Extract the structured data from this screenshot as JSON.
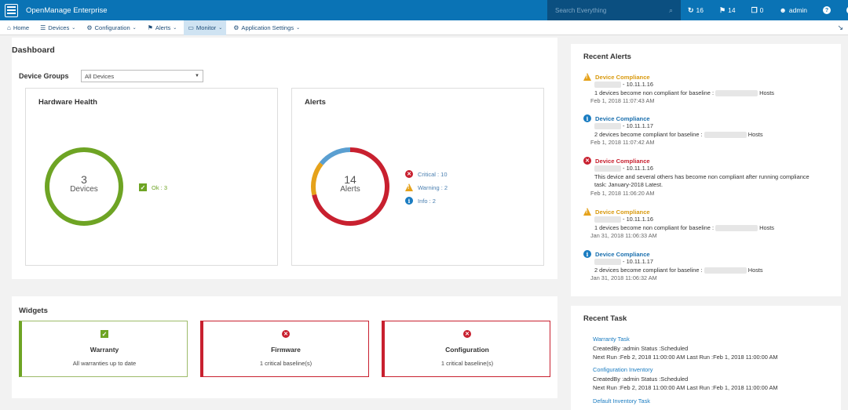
{
  "app": {
    "title": "OpenManage Enterprise"
  },
  "search": {
    "placeholder": "Search Everything"
  },
  "topbar": {
    "jobs": "16",
    "alerts": "14",
    "reports": "0",
    "user": "admin",
    "help": "?",
    "info": "i"
  },
  "nav": [
    {
      "label": "Home",
      "icon": "home-icon"
    },
    {
      "label": "Devices",
      "icon": "devices-icon"
    },
    {
      "label": "Configuration",
      "icon": "configuration-icon"
    },
    {
      "label": "Alerts",
      "icon": "flag-icon"
    },
    {
      "label": "Monitor",
      "icon": "monitor-icon"
    },
    {
      "label": "Application Settings",
      "icon": "gear-icon"
    }
  ],
  "dashboard": {
    "title": "Dashboard",
    "device_groups_label": "Device Groups",
    "device_groups_selected": "All Devices",
    "hardware_health": {
      "title": "Hardware Health",
      "count": "3",
      "count_label": "Devices",
      "legend": [
        {
          "label": "Ok : 3",
          "color": "#6ea424"
        }
      ]
    },
    "alerts": {
      "title": "Alerts",
      "count": "14",
      "count_label": "Alerts",
      "legend": [
        {
          "label": "Critical : 10",
          "color": "#c8202f"
        },
        {
          "label": "Warning : 2",
          "color": "#e5a21b"
        },
        {
          "label": "Info : 2",
          "color": "#5a9fd1"
        }
      ]
    }
  },
  "chart_data": [
    {
      "type": "pie",
      "title": "Hardware Health",
      "categories": [
        "Ok"
      ],
      "values": [
        3
      ],
      "colors": [
        "#6ea424"
      ]
    },
    {
      "type": "pie",
      "title": "Alerts",
      "categories": [
        "Critical",
        "Warning",
        "Info"
      ],
      "values": [
        10,
        2,
        2
      ],
      "colors": [
        "#c8202f",
        "#e5a21b",
        "#5a9fd1"
      ]
    }
  ],
  "widgets": {
    "title": "Widgets",
    "items": [
      {
        "title": "Warranty",
        "status": "All warranties up to date",
        "state": "ok"
      },
      {
        "title": "Firmware",
        "status": "1 critical baseline(s)",
        "state": "critical"
      },
      {
        "title": "Configuration",
        "status": "1 critical baseline(s)",
        "state": "critical"
      }
    ]
  },
  "recent_alerts": {
    "title": "Recent Alerts",
    "items": [
      {
        "severity": "warning",
        "category": "Device Compliance",
        "ip": " - 10.11.1.16",
        "message_a": "1 devices become non compliant for baseline : ",
        "message_b": " Hosts",
        "time": "Feb 1, 2018 11:07:43 AM"
      },
      {
        "severity": "info",
        "category": "Device Compliance",
        "ip": " - 10.11.1.17",
        "message_a": "2 devices become compliant for baseline : ",
        "message_b": " Hosts",
        "time": "Feb 1, 2018 11:07:42 AM"
      },
      {
        "severity": "critical",
        "category": "Device Compliance",
        "ip": " - 10.11.1.16",
        "message_a": "This device and several others has become non compliant after running compliance",
        "message_b": "task: January-2018 Latest.",
        "time": "Feb 1, 2018 11:06:20 AM"
      },
      {
        "severity": "warning",
        "category": "Device Compliance",
        "ip": " - 10.11.1.16",
        "message_a": "1 devices become non compliant for baseline : ",
        "message_b": " Hosts",
        "time": "Jan 31, 2018 11:06:33 AM"
      },
      {
        "severity": "info",
        "category": "Device Compliance",
        "ip": " - 10.11.1.17",
        "message_a": "2 devices become compliant for baseline : ",
        "message_b": " Hosts",
        "time": "Jan 31, 2018 11:06:32 AM"
      }
    ]
  },
  "recent_task": {
    "title": "Recent Task",
    "items": [
      {
        "name": "Warranty Task",
        "created": "CreatedBy :admin Status :Scheduled",
        "runs": "Next Run :Feb 2, 2018 11:00:00 AM Last Run :Feb 1, 2018 11:00:00 AM"
      },
      {
        "name": "Configuration Inventory",
        "created": "CreatedBy :admin Status :Scheduled",
        "runs": "Next Run :Feb 2, 2018 11:00:00 AM Last Run :Feb 1, 2018 11:00:00 AM"
      },
      {
        "name": "Default Inventory Task",
        "created": "",
        "runs": ""
      }
    ]
  }
}
